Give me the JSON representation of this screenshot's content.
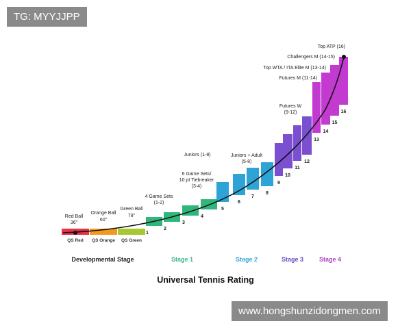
{
  "watermark_top": "TG: MYYJJPP",
  "watermark_bottom": "www.hongshunzidongmen.com",
  "title": "Universal Tennis Rating",
  "stages": [
    {
      "label": "Developmental Stage",
      "color": "#222222"
    },
    {
      "label": "Stage 1",
      "color": "#3cb48c"
    },
    {
      "label": "Stage 2",
      "color": "#3aa6d8"
    },
    {
      "label": "Stage 3",
      "color": "#6a4cc8"
    },
    {
      "label": "Stage 4",
      "color": "#b23cc8"
    }
  ],
  "qs_balls": [
    {
      "top_lines": [
        "Red Ball",
        "36\""
      ],
      "base_label": "QS Red",
      "color": "#e8324a"
    },
    {
      "top_lines": [
        "Orange Ball",
        "60\""
      ],
      "base_label": "QS Orange",
      "color": "#f39a1e"
    },
    {
      "top_lines": [
        "Green Ball",
        "78\""
      ],
      "base_label": "QS Green",
      "color": "#a8c832"
    }
  ],
  "levels": [
    {
      "n": "1",
      "color": "#2fb67a"
    },
    {
      "n": "2",
      "color": "#2fb67a"
    },
    {
      "n": "3",
      "color": "#2fb67a"
    },
    {
      "n": "4",
      "color": "#2fb67a"
    },
    {
      "n": "5",
      "color": "#2ea3d6"
    },
    {
      "n": "6",
      "color": "#2ea3d6"
    },
    {
      "n": "7",
      "color": "#2ea3d6"
    },
    {
      "n": "8",
      "color": "#2ea3d6"
    },
    {
      "n": "9",
      "color": "#7a4fd0"
    },
    {
      "n": "10",
      "color": "#7a4fd0"
    },
    {
      "n": "11",
      "color": "#7a4fd0"
    },
    {
      "n": "12",
      "color": "#7a4fd0"
    },
    {
      "n": "13",
      "color": "#c23ad0"
    },
    {
      "n": "14",
      "color": "#c23ad0"
    },
    {
      "n": "15",
      "color": "#c23ad0"
    },
    {
      "n": "16",
      "color": "#c23ad0"
    }
  ],
  "annotations": [
    [
      "4 Game Sets",
      "(1-2)"
    ],
    [
      "6 Game Sets/",
      "10 pt Tiebreaker",
      "(3-4)"
    ],
    [
      "Juniors (1-8)"
    ],
    [
      "Juniors + Adult",
      "(5-8)"
    ],
    [
      "Futures W",
      "(9-12)"
    ],
    [
      "Futures M (11-14)"
    ],
    [
      "Top WTA / ITA Elite M (13-14)"
    ],
    [
      "Challengers M (14-15)"
    ],
    [
      "Top ATP (16)"
    ]
  ]
}
